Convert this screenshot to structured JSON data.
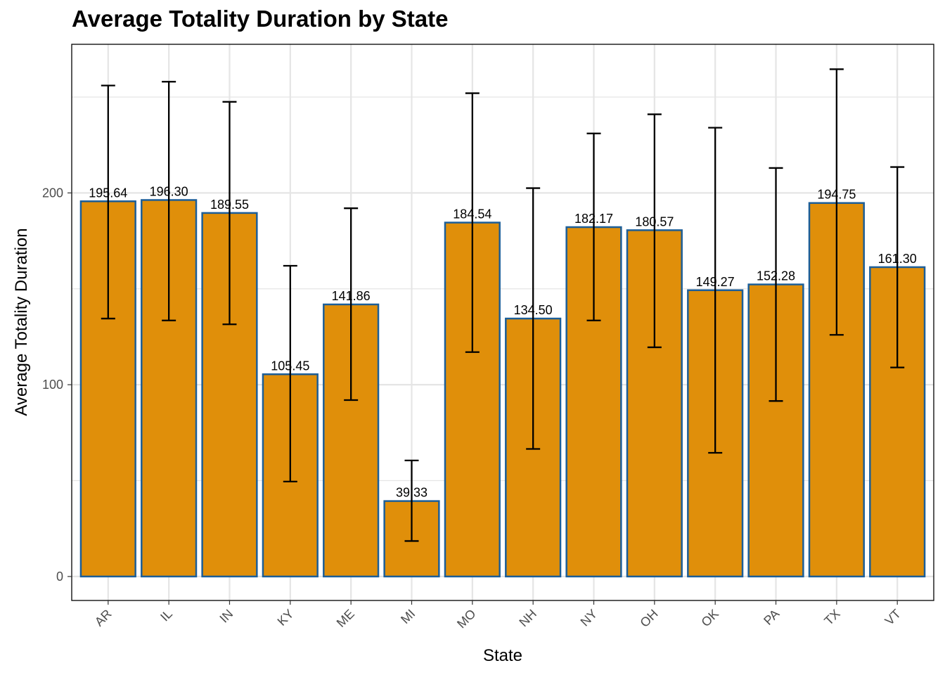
{
  "chart_data": {
    "type": "bar",
    "title": "Average Totality Duration by State",
    "xlabel": "State",
    "ylabel": "Average Totality Duration",
    "categories": [
      "AR",
      "IL",
      "IN",
      "KY",
      "ME",
      "MI",
      "MO",
      "NH",
      "NY",
      "OH",
      "OK",
      "PA",
      "TX",
      "VT"
    ],
    "values": [
      195.64,
      196.3,
      189.55,
      105.45,
      141.86,
      39.33,
      184.54,
      134.5,
      182.17,
      180.57,
      149.27,
      152.28,
      194.75,
      161.3
    ],
    "value_labels": [
      "195.64",
      "196.30",
      "189.55",
      "105.45",
      "141.86",
      "39.33",
      "184.54",
      "134.50",
      "182.17",
      "180.57",
      "149.27",
      "152.28",
      "194.75",
      "161.30"
    ],
    "error_low": [
      134.5,
      133.5,
      131.5,
      49.5,
      92.0,
      18.5,
      117.0,
      66.5,
      133.5,
      119.5,
      64.5,
      91.5,
      126.0,
      109.0
    ],
    "error_high": [
      256.0,
      258.0,
      247.5,
      162.0,
      192.0,
      60.5,
      252.0,
      202.5,
      231.0,
      241.0,
      234.0,
      213.0,
      264.5,
      213.5
    ],
    "ylim": [
      -12.5,
      277.5
    ],
    "y_ticks": [
      0,
      100,
      200
    ],
    "y_tick_labels": [
      "0",
      "100",
      "200"
    ],
    "y_minor_ticks": [
      50,
      150,
      250
    ],
    "grid": true,
    "legend": "none",
    "bar_fill": "#E08F0A",
    "bar_stroke": "#1C5E98",
    "error_bar_color": "#000000",
    "grid_color": "#E5E5E5"
  }
}
